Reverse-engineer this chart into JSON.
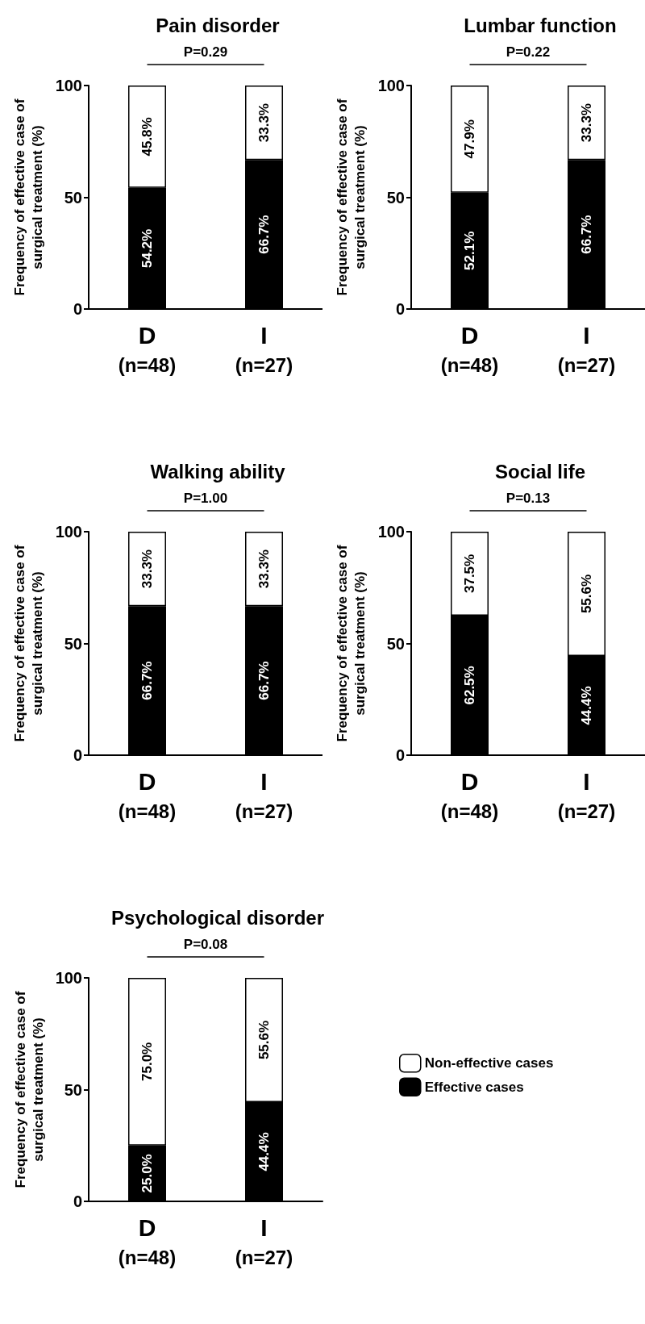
{
  "chart_data": [
    {
      "type": "bar",
      "title": "Pain disorder",
      "ylabel": "Frequency of effective case of surgical treatment (%)",
      "annotations": [
        "P=0.29"
      ],
      "categories": [
        "D\n(n=48)",
        "I\n(n=27)"
      ],
      "stacked": true,
      "ylim": [
        0,
        100
      ],
      "yticks": [
        0,
        50,
        100
      ],
      "legend": false,
      "series": [
        {
          "color": "#000000",
          "values": [
            54.2,
            66.7
          ],
          "value_labels": [
            "54.2%",
            "66.7%"
          ]
        },
        {
          "color": "#ffffff",
          "values": [
            45.8,
            33.3
          ],
          "value_labels": [
            "45.8%",
            "33.3%"
          ]
        }
      ]
    },
    {
      "type": "bar",
      "title": "Lumbar function",
      "ylabel": "Frequency of effective case of surgical treatment (%)",
      "annotations": [
        "P=0.22"
      ],
      "categories": [
        "D\n(n=48)",
        "I\n(n=27)"
      ],
      "stacked": true,
      "ylim": [
        0,
        100
      ],
      "yticks": [
        0,
        50,
        100
      ],
      "legend": false,
      "series": [
        {
          "color": "#000000",
          "values": [
            52.1,
            66.7
          ],
          "value_labels": [
            "52.1%",
            "66.7%"
          ]
        },
        {
          "color": "#ffffff",
          "values": [
            47.9,
            33.3
          ],
          "value_labels": [
            "47.9%",
            "33.3%"
          ]
        }
      ]
    },
    {
      "type": "bar",
      "title": "Walking ability",
      "ylabel": "Frequency of effective case of surgical treatment (%)",
      "annotations": [
        "P=1.00"
      ],
      "categories": [
        "D\n(n=48)",
        "I\n(n=27)"
      ],
      "stacked": true,
      "ylim": [
        0,
        100
      ],
      "yticks": [
        0,
        50,
        100
      ],
      "legend": false,
      "series": [
        {
          "color": "#000000",
          "values": [
            66.7,
            66.7
          ],
          "value_labels": [
            "66.7%",
            "66.7%"
          ]
        },
        {
          "color": "#ffffff",
          "values": [
            33.3,
            33.3
          ],
          "value_labels": [
            "33.3%",
            "33.3%"
          ]
        }
      ]
    },
    {
      "type": "bar",
      "title": "Social life",
      "ylabel": "Frequency of effective case of surgical treatment (%)",
      "annotations": [
        "P=0.13"
      ],
      "categories": [
        "D\n(n=48)",
        "I\n(n=27)"
      ],
      "stacked": true,
      "ylim": [
        0,
        100
      ],
      "yticks": [
        0,
        50,
        100
      ],
      "legend": false,
      "series": [
        {
          "color": "#000000",
          "values": [
            62.5,
            44.4
          ],
          "value_labels": [
            "62.5%",
            "44.4%"
          ]
        },
        {
          "color": "#ffffff",
          "values": [
            37.5,
            55.6
          ],
          "value_labels": [
            "37.5%",
            "55.6%"
          ]
        }
      ]
    },
    {
      "type": "bar",
      "title": "Psychological disorder",
      "ylabel": "Frequency of effective case of surgical treatment (%)",
      "annotations": [
        "P=0.08"
      ],
      "categories": [
        "D\n(n=48)",
        "I\n(n=27)"
      ],
      "stacked": true,
      "ylim": [
        0,
        100
      ],
      "yticks": [
        0,
        50,
        100
      ],
      "legend": "right",
      "series": [
        {
          "name": "Effective cases",
          "color": "#000000",
          "values": [
            25.0,
            44.4
          ],
          "value_labels": [
            "25.0%",
            "44.4%"
          ]
        },
        {
          "name": "Non-effective cases",
          "color": "#ffffff",
          "values": [
            75.0,
            55.6
          ],
          "value_labels": [
            "75.0%",
            "55.6%"
          ]
        }
      ]
    }
  ]
}
